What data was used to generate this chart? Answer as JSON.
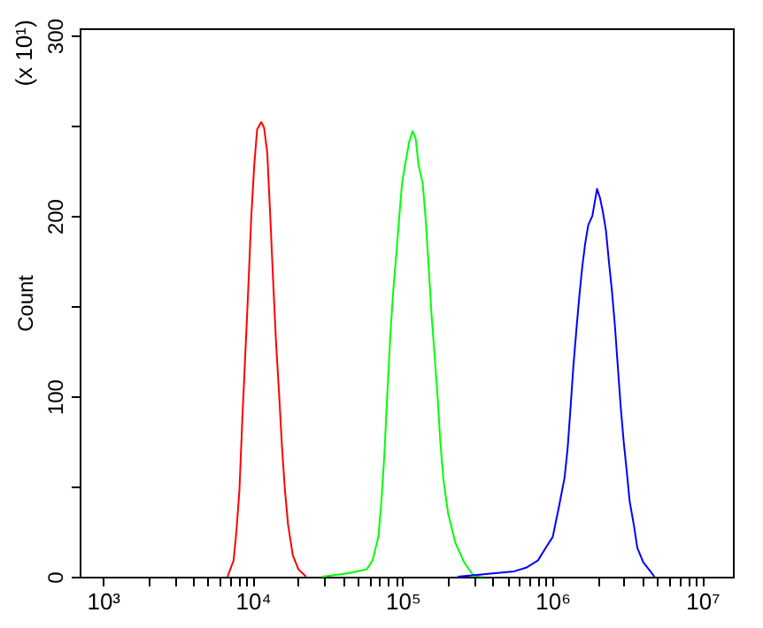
{
  "chart_data": {
    "type": "line",
    "ylabel": "Count",
    "annotations": [
      "(x 10¹)"
    ],
    "log": "x",
    "grid": false,
    "xlim": [
      700,
      16000000
    ],
    "ylim": [
      0,
      304
    ],
    "xticks": [
      {
        "value": 1000,
        "label": "10³"
      },
      {
        "value": 2000,
        "label": null
      },
      {
        "value": 3000,
        "label": null
      },
      {
        "value": 4000,
        "label": null
      },
      {
        "value": 5000,
        "label": null
      },
      {
        "value": 6000,
        "label": null
      },
      {
        "value": 7000,
        "label": null
      },
      {
        "value": 8000,
        "label": null
      },
      {
        "value": 9000,
        "label": null
      },
      {
        "value": 10000,
        "label": "10⁴"
      },
      {
        "value": 20000,
        "label": null
      },
      {
        "value": 30000,
        "label": null
      },
      {
        "value": 40000,
        "label": null
      },
      {
        "value": 50000,
        "label": null
      },
      {
        "value": 60000,
        "label": null
      },
      {
        "value": 70000,
        "label": null
      },
      {
        "value": 80000,
        "label": null
      },
      {
        "value": 90000,
        "label": null
      },
      {
        "value": 100000,
        "label": "10⁵"
      },
      {
        "value": 200000,
        "label": null
      },
      {
        "value": 300000,
        "label": null
      },
      {
        "value": 400000,
        "label": null
      },
      {
        "value": 500000,
        "label": null
      },
      {
        "value": 600000,
        "label": null
      },
      {
        "value": 700000,
        "label": null
      },
      {
        "value": 800000,
        "label": null
      },
      {
        "value": 900000,
        "label": null
      },
      {
        "value": 1000000,
        "label": "10⁶"
      },
      {
        "value": 2000000,
        "label": null
      },
      {
        "value": 3000000,
        "label": null
      },
      {
        "value": 4000000,
        "label": null
      },
      {
        "value": 5000000,
        "label": null
      },
      {
        "value": 6000000,
        "label": null
      },
      {
        "value": 7000000,
        "label": null
      },
      {
        "value": 8000000,
        "label": null
      },
      {
        "value": 9000000,
        "label": null
      },
      {
        "value": 10000000,
        "label": "10⁷"
      }
    ],
    "yticks": [
      0,
      {
        "value": 50,
        "label": null
      },
      100,
      {
        "value": 150,
        "label": null
      },
      200,
      {
        "value": 250,
        "label": null
      },
      300
    ],
    "series": [
      {
        "color": "#ff0000",
        "x": [
          6790,
          7450,
          7780,
          8150,
          8530,
          8930,
          9340,
          9770,
          10230,
          10700,
          11400,
          11900,
          12500,
          13100,
          13700,
          14300,
          15000,
          15700,
          16400,
          17200,
          18500,
          20200,
          22700
        ],
        "values": [
          0,
          9,
          25,
          48,
          88,
          124,
          160,
          199,
          228,
          248,
          252,
          249,
          235,
          199,
          163,
          130,
          101,
          71,
          48,
          29,
          12,
          4,
          0
        ]
      },
      {
        "color": "#00ff00",
        "x": [
          29100,
          43700,
          57500,
          63000,
          68900,
          72100,
          75500,
          78900,
          82600,
          86500,
          90600,
          94700,
          99100,
          103700,
          110600,
          116700,
          122200,
          127900,
          136200,
          142600,
          149200,
          156100,
          163400,
          171000,
          178800,
          187200,
          201300,
          224500,
          257000,
          295000,
          338000
        ],
        "values": [
          0,
          2,
          4,
          9,
          22,
          41,
          67,
          100,
          132,
          158,
          178,
          198,
          218,
          228,
          241,
          247,
          243,
          228,
          218,
          198,
          172,
          145,
          123,
          100,
          74,
          54,
          35,
          19,
          8,
          1,
          0
        ]
      },
      {
        "color": "#0000ff",
        "x": [
          233000,
          557000,
          668000,
          800000,
          918000,
          1004000,
          1100000,
          1205000,
          1262000,
          1321000,
          1380000,
          1445000,
          1513000,
          1582000,
          1656000,
          1734000,
          1846000,
          1985000,
          2076000,
          2173000,
          2274000,
          2379000,
          2490000,
          2606000,
          2727000,
          2855000,
          2987000,
          3126000,
          3272000,
          3487000,
          3683000,
          4034000,
          4500000,
          4790000
        ],
        "values": [
          0,
          3,
          5,
          9,
          17,
          22,
          38,
          55,
          71,
          94,
          117,
          137,
          156,
          172,
          185,
          195,
          200,
          215,
          210,
          202,
          192,
          175,
          159,
          140,
          117,
          94,
          75,
          59,
          42,
          29,
          16,
          8,
          3,
          0
        ]
      }
    ]
  }
}
